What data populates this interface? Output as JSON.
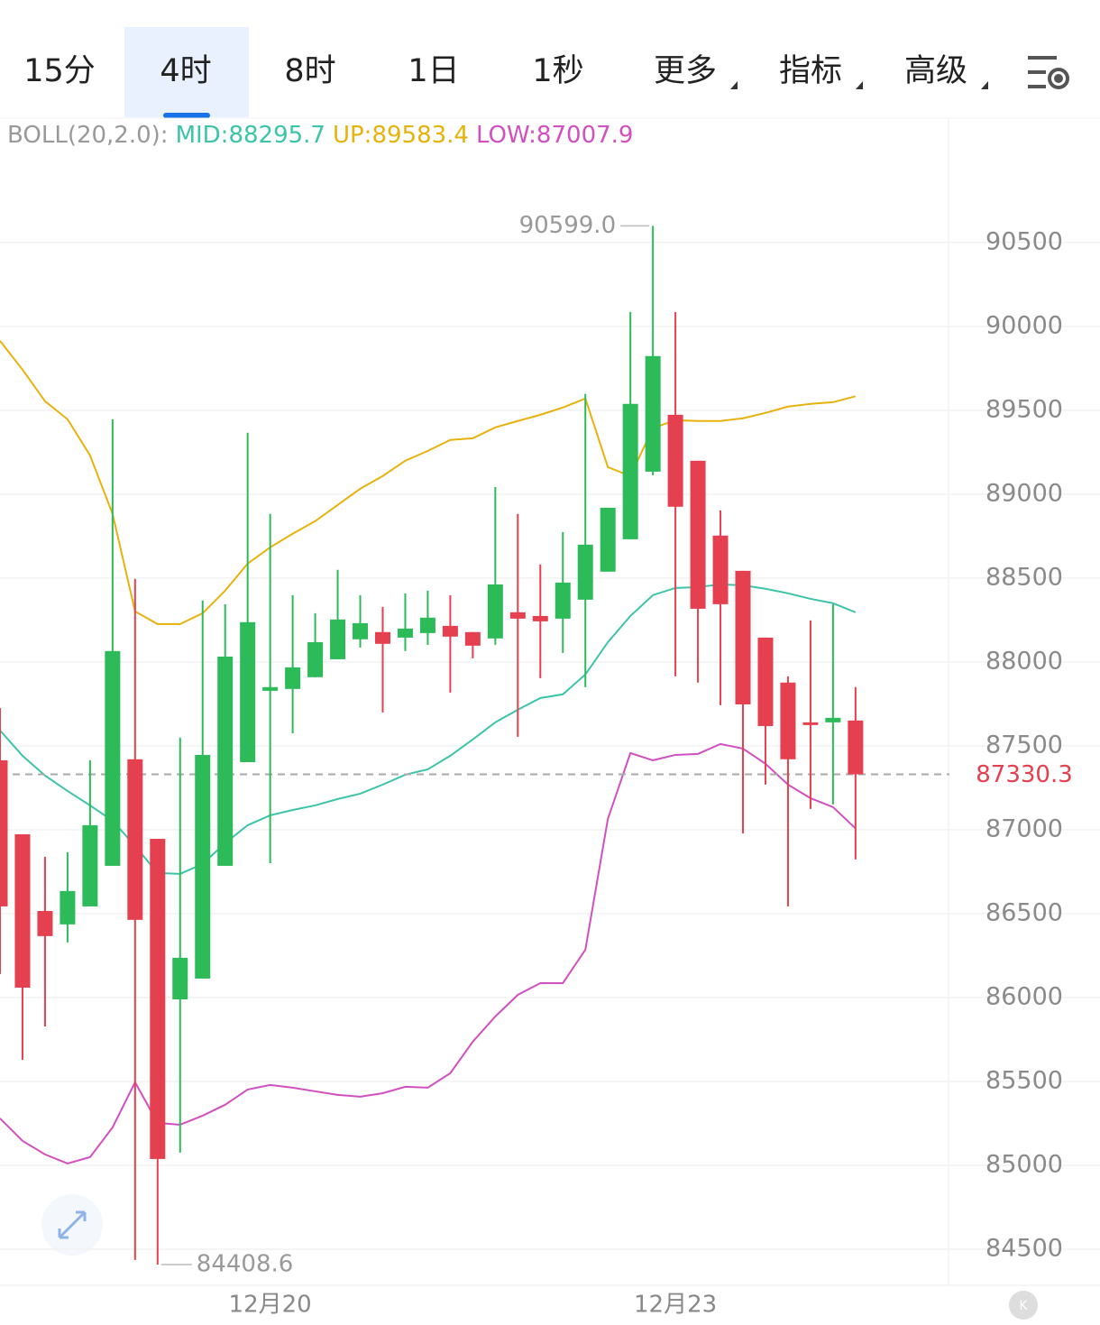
{
  "tabs": [
    "15分",
    "4时",
    "8时",
    "1日",
    "1秒",
    "更多",
    "指标",
    "高级"
  ],
  "selected_tab": 1,
  "chart_data": {
    "type": "candlestick",
    "indicator": "BOLL(20,2.0):",
    "categories": [
      null,
      null,
      null,
      null,
      null,
      null,
      null,
      null,
      null,
      null,
      null,
      null,
      "12月20",
      null,
      null,
      null,
      null,
      null,
      null,
      null,
      null,
      null,
      null,
      null,
      null,
      null,
      null,
      null,
      null,
      null,
      "12月23",
      null,
      null,
      null,
      null,
      null,
      null,
      null,
      null
    ],
    "open": [
      87414,
      86973,
      86516,
      86436,
      86543,
      86785,
      87420,
      86946,
      85989,
      86113,
      86785,
      87403,
      87828,
      87839,
      87909,
      88016,
      88135,
      88178,
      88145,
      88172,
      88215,
      88178,
      88140,
      88296,
      88274,
      88258,
      88371,
      88538,
      88731,
      89134,
      89473,
      89199,
      88753,
      88543,
      88145,
      87877,
      87640,
      87640,
      87651
    ],
    "high": [
      87726,
      86973,
      86839,
      86866,
      87414,
      89446,
      88495,
      86946,
      87549,
      88366,
      88344,
      89366,
      88882,
      88398,
      88290,
      88549,
      88398,
      88328,
      88409,
      88425,
      88398,
      88178,
      89043,
      88882,
      88581,
      88774,
      89597,
      88919,
      90086,
      90599,
      90086,
      89199,
      88903,
      88543,
      88145,
      87914,
      88247,
      88344,
      87850
    ],
    "low": [
      86140,
      85629,
      85828,
      86328,
      86543,
      86785,
      84436,
      84408.6,
      85076,
      86113,
      86785,
      87403,
      86801,
      87575,
      87909,
      88016,
      88086,
      87699,
      88065,
      88102,
      87817,
      88022,
      88102,
      87554,
      87903,
      88054,
      87850,
      88538,
      88731,
      89113,
      87914,
      87877,
      87742,
      86979,
      87269,
      86543,
      87124,
      87151,
      86823
    ],
    "close": [
      86543,
      86059,
      86366,
      86635,
      87027,
      88065,
      86463,
      85038,
      86237,
      87446,
      88032,
      88237,
      87850,
      87968,
      88118,
      88253,
      88231,
      88108,
      88199,
      88264,
      88151,
      88097,
      88462,
      88258,
      88242,
      88473,
      88699,
      88919,
      89538,
      89823,
      88925,
      88317,
      88344,
      87747,
      87618,
      87420,
      87629,
      87667,
      87330.3
    ],
    "up_color": "#2dbb5a",
    "down_color": "#e5404f",
    "series": [
      {
        "name": "MID:88295.7",
        "color": "#3cc4a8",
        "values": [
          87592,
          87441,
          87323,
          87231,
          87145,
          87054,
          86903,
          86742,
          86737,
          86796,
          86920,
          87027,
          87086,
          87118,
          87145,
          87183,
          87215,
          87269,
          87328,
          87360,
          87441,
          87538,
          87640,
          87715,
          87785,
          87807,
          87925,
          88118,
          88274,
          88398,
          88441,
          88446,
          88462,
          88457,
          88436,
          88409,
          88376,
          88350,
          88295.7
        ]
      },
      {
        "name": "UP:89583.4",
        "color": "#e8b20c",
        "values": [
          89914,
          89742,
          89554,
          89446,
          89231,
          88882,
          88301,
          88226,
          88226,
          88290,
          88425,
          88586,
          88683,
          88764,
          88839,
          88936,
          89032,
          89108,
          89199,
          89258,
          89323,
          89333,
          89398,
          89436,
          89473,
          89516,
          89570,
          89161,
          89108,
          89393,
          89441,
          89436,
          89436,
          89452,
          89484,
          89522,
          89538,
          89548,
          89583.4
        ]
      },
      {
        "name": "LOW:87007.9",
        "color": "#d24fc0",
        "values": [
          85280,
          85146,
          85065,
          85011,
          85049,
          85226,
          85495,
          85253,
          85242,
          85296,
          85361,
          85452,
          85479,
          85463,
          85441,
          85420,
          85409,
          85430,
          85468,
          85463,
          85549,
          85737,
          85887,
          86016,
          86086,
          86086,
          86285,
          87065,
          87457,
          87414,
          87446,
          87452,
          87511,
          87484,
          87393,
          87269,
          87188,
          87135,
          87007.9
        ]
      }
    ],
    "high_mark": {
      "value": 90599,
      "label": "90599.0"
    },
    "low_mark": {
      "value": 84408.6,
      "label": "84408.6"
    },
    "last_price": {
      "value": 87330.3,
      "label": "87330.3"
    },
    "ylim": [
      84285,
      91230
    ],
    "yticks": [
      84500,
      85000,
      85500,
      86000,
      86500,
      87000,
      87500,
      88000,
      88500,
      89000,
      89500,
      90000,
      90500
    ],
    "grid": true
  }
}
